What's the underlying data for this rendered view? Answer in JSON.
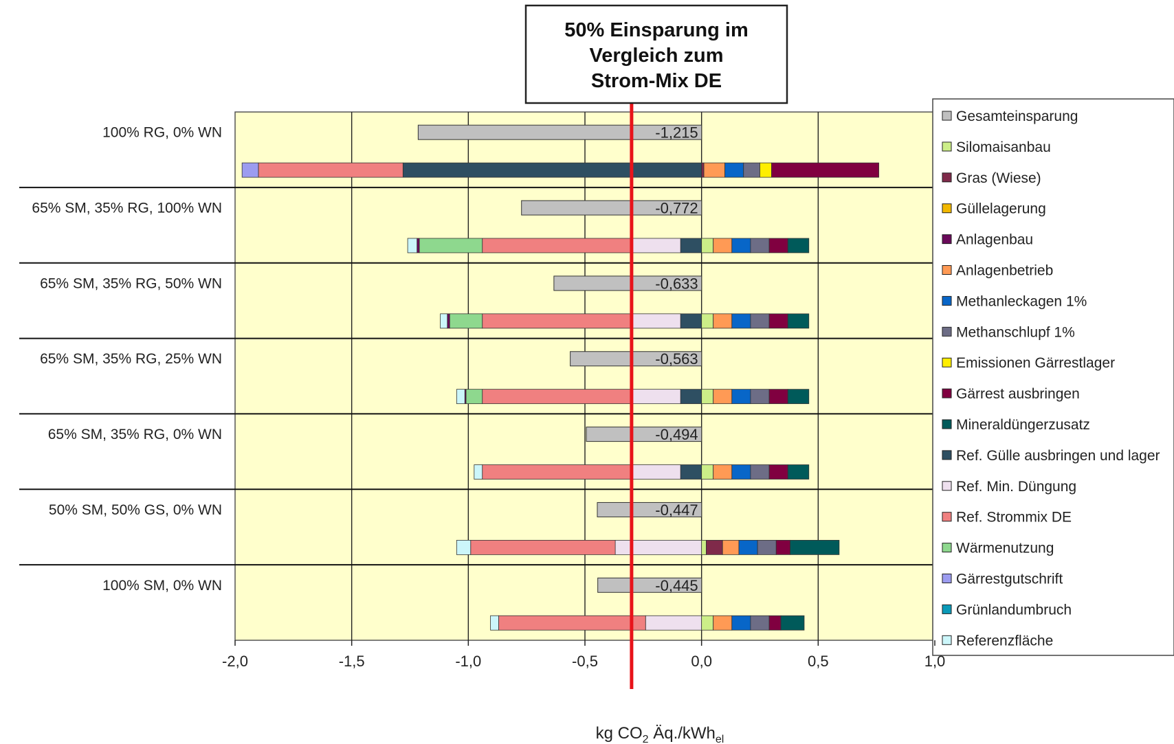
{
  "chart_data": {
    "type": "bar",
    "orientation": "horizontal",
    "stacked": true,
    "annotation": {
      "lines": [
        "50% Einsparung im",
        "Vergleich zum",
        "Strom-Mix DE"
      ],
      "x": -0.3,
      "line_color": "#e8131a"
    },
    "xlabel": {
      "main": "kg CO",
      "sub2": "2",
      "mid": " Äq./kWh",
      "subel": "el"
    },
    "xlim": [
      -2.0,
      1.0
    ],
    "xticks": [
      -2.0,
      -1.5,
      -1.0,
      -0.5,
      0.0,
      0.5,
      1.0
    ],
    "xtick_labels": [
      "-2,0",
      "-1,5",
      "-1,0",
      "-0,5",
      "0,0",
      "0,5",
      "1,0"
    ],
    "grid": true,
    "legend_position": "right",
    "plot_background": "#ffffcc",
    "series": [
      {
        "name": "Gesamteinsparung",
        "color": "#c0c0c0"
      },
      {
        "name": "Silomaisanbau",
        "color": "#ccee88"
      },
      {
        "name": "Gras (Wiese)",
        "color": "#7f2a4a"
      },
      {
        "name": "Güllelagerung",
        "color": "#f2b800"
      },
      {
        "name": "Anlagenbau",
        "color": "#6a0a5a"
      },
      {
        "name": "Anlagenbetrieb",
        "color": "#ff9a55"
      },
      {
        "name": "Methanleckagen 1%",
        "color": "#0866c8"
      },
      {
        "name": "Methanschlupf 1%",
        "color": "#6d6d86"
      },
      {
        "name": "Emissionen Gärrestlager",
        "color": "#ffee00"
      },
      {
        "name": "Gärrest ausbringen",
        "color": "#800040"
      },
      {
        "name": "Mineraldüngerzusatz",
        "color": "#005a5a"
      },
      {
        "name": "Ref. Gülle ausbringen und lager",
        "color": "#2e4f62"
      },
      {
        "name": "Ref. Min. Düngung",
        "color": "#eee0ee"
      },
      {
        "name": "Ref. Strommix DE",
        "color": "#f08080"
      },
      {
        "name": "Wärmenutzung",
        "color": "#8ed88e"
      },
      {
        "name": "Gärrestgutschrift",
        "color": "#9c9cf0"
      },
      {
        "name": "Grünlandumbruch",
        "color": "#0a9ab8"
      },
      {
        "name": "Referenzfläche",
        "color": "#ccf6fa"
      }
    ],
    "scenarios": [
      {
        "label": "100% RG, 0% WN",
        "total": -1.215,
        "total_label": "-1,215",
        "negative": [
          [
            "Ref. Gülle ausbringen und lager",
            1.28
          ],
          [
            "Ref. Strommix DE",
            0.62
          ],
          [
            "Gärrestgutschrift",
            0.07
          ]
        ],
        "positive": [
          [
            "Gras (Wiese)",
            0.01
          ],
          [
            "Anlagenbetrieb",
            0.09
          ],
          [
            "Methanleckagen 1%",
            0.08
          ],
          [
            "Methanschlupf 1%",
            0.07
          ],
          [
            "Emissionen Gärrestlager",
            0.05
          ],
          [
            "Gärrest ausbringen",
            0.46
          ]
        ]
      },
      {
        "label": "65% SM, 35% RG, 100% WN",
        "total": -0.772,
        "total_label": "-0,772",
        "negative": [
          [
            "Ref. Gülle ausbringen und lager",
            0.09
          ],
          [
            "Ref. Min. Düngung",
            0.21
          ],
          [
            "Ref. Strommix DE",
            0.64
          ],
          [
            "Wärmenutzung",
            0.27
          ],
          [
            "Anlagenbau",
            0.01
          ],
          [
            "Referenzfläche",
            0.04
          ]
        ],
        "positive": [
          [
            "Silomaisanbau",
            0.05
          ],
          [
            "Anlagenbetrieb",
            0.08
          ],
          [
            "Methanleckagen 1%",
            0.08
          ],
          [
            "Methanschlupf 1%",
            0.08
          ],
          [
            "Gärrest ausbringen",
            0.08
          ],
          [
            "Mineraldüngerzusatz",
            0.09
          ]
        ]
      },
      {
        "label": "65% SM, 35% RG, 50% WN",
        "total": -0.633,
        "total_label": "-0,633",
        "negative": [
          [
            "Ref. Gülle ausbringen und lager",
            0.09
          ],
          [
            "Ref. Min. Düngung",
            0.21
          ],
          [
            "Ref. Strommix DE",
            0.64
          ],
          [
            "Wärmenutzung",
            0.14
          ],
          [
            "Anlagenbau",
            0.01
          ],
          [
            "Referenzfläche",
            0.03
          ]
        ],
        "positive": [
          [
            "Silomaisanbau",
            0.05
          ],
          [
            "Anlagenbetrieb",
            0.08
          ],
          [
            "Methanleckagen 1%",
            0.08
          ],
          [
            "Methanschlupf 1%",
            0.08
          ],
          [
            "Gärrest ausbringen",
            0.08
          ],
          [
            "Mineraldüngerzusatz",
            0.09
          ]
        ]
      },
      {
        "label": "65% SM, 35% RG, 25% WN",
        "total": -0.563,
        "total_label": "-0,563",
        "negative": [
          [
            "Ref. Gülle ausbringen und lager",
            0.09
          ],
          [
            "Ref. Min. Düngung",
            0.21
          ],
          [
            "Ref. Strommix DE",
            0.64
          ],
          [
            "Wärmenutzung",
            0.07
          ],
          [
            "Anlagenbau",
            0.005
          ],
          [
            "Referenzfläche",
            0.035
          ]
        ],
        "positive": [
          [
            "Silomaisanbau",
            0.05
          ],
          [
            "Anlagenbetrieb",
            0.08
          ],
          [
            "Methanleckagen 1%",
            0.08
          ],
          [
            "Methanschlupf 1%",
            0.08
          ],
          [
            "Gärrest ausbringen",
            0.08
          ],
          [
            "Mineraldüngerzusatz",
            0.09
          ]
        ]
      },
      {
        "label": "65% SM, 35% RG, 0% WN",
        "total": -0.494,
        "total_label": "-0,494",
        "negative": [
          [
            "Ref. Gülle ausbringen und lager",
            0.09
          ],
          [
            "Ref. Min. Düngung",
            0.21
          ],
          [
            "Ref. Strommix DE",
            0.64
          ],
          [
            "Referenzfläche",
            0.035
          ]
        ],
        "positive": [
          [
            "Silomaisanbau",
            0.05
          ],
          [
            "Anlagenbetrieb",
            0.08
          ],
          [
            "Methanleckagen 1%",
            0.08
          ],
          [
            "Methanschlupf 1%",
            0.08
          ],
          [
            "Gärrest ausbringen",
            0.08
          ],
          [
            "Mineraldüngerzusatz",
            0.09
          ]
        ]
      },
      {
        "label": "50% SM, 50% GS, 0% WN",
        "total": -0.447,
        "total_label": "-0,447",
        "negative": [
          [
            "Ref. Min. Düngung",
            0.37
          ],
          [
            "Ref. Strommix DE",
            0.62
          ],
          [
            "Referenzfläche",
            0.06
          ]
        ],
        "positive": [
          [
            "Silomaisanbau",
            0.02
          ],
          [
            "Gras (Wiese)",
            0.07
          ],
          [
            "Anlagenbetrieb",
            0.07
          ],
          [
            "Methanleckagen 1%",
            0.08
          ],
          [
            "Methanschlupf 1%",
            0.08
          ],
          [
            "Gärrest ausbringen",
            0.06
          ],
          [
            "Mineraldüngerzusatz",
            0.21
          ]
        ]
      },
      {
        "label": "100% SM, 0% WN",
        "total": -0.445,
        "total_label": "-0,445",
        "negative": [
          [
            "Ref. Min. Düngung",
            0.24
          ],
          [
            "Ref. Strommix DE",
            0.63
          ],
          [
            "Referenzfläche",
            0.035
          ]
        ],
        "positive": [
          [
            "Silomaisanbau",
            0.05
          ],
          [
            "Anlagenbetrieb",
            0.08
          ],
          [
            "Methanleckagen 1%",
            0.08
          ],
          [
            "Methanschlupf 1%",
            0.08
          ],
          [
            "Gärrest ausbringen",
            0.05
          ],
          [
            "Mineraldüngerzusatz",
            0.1
          ]
        ]
      }
    ]
  }
}
